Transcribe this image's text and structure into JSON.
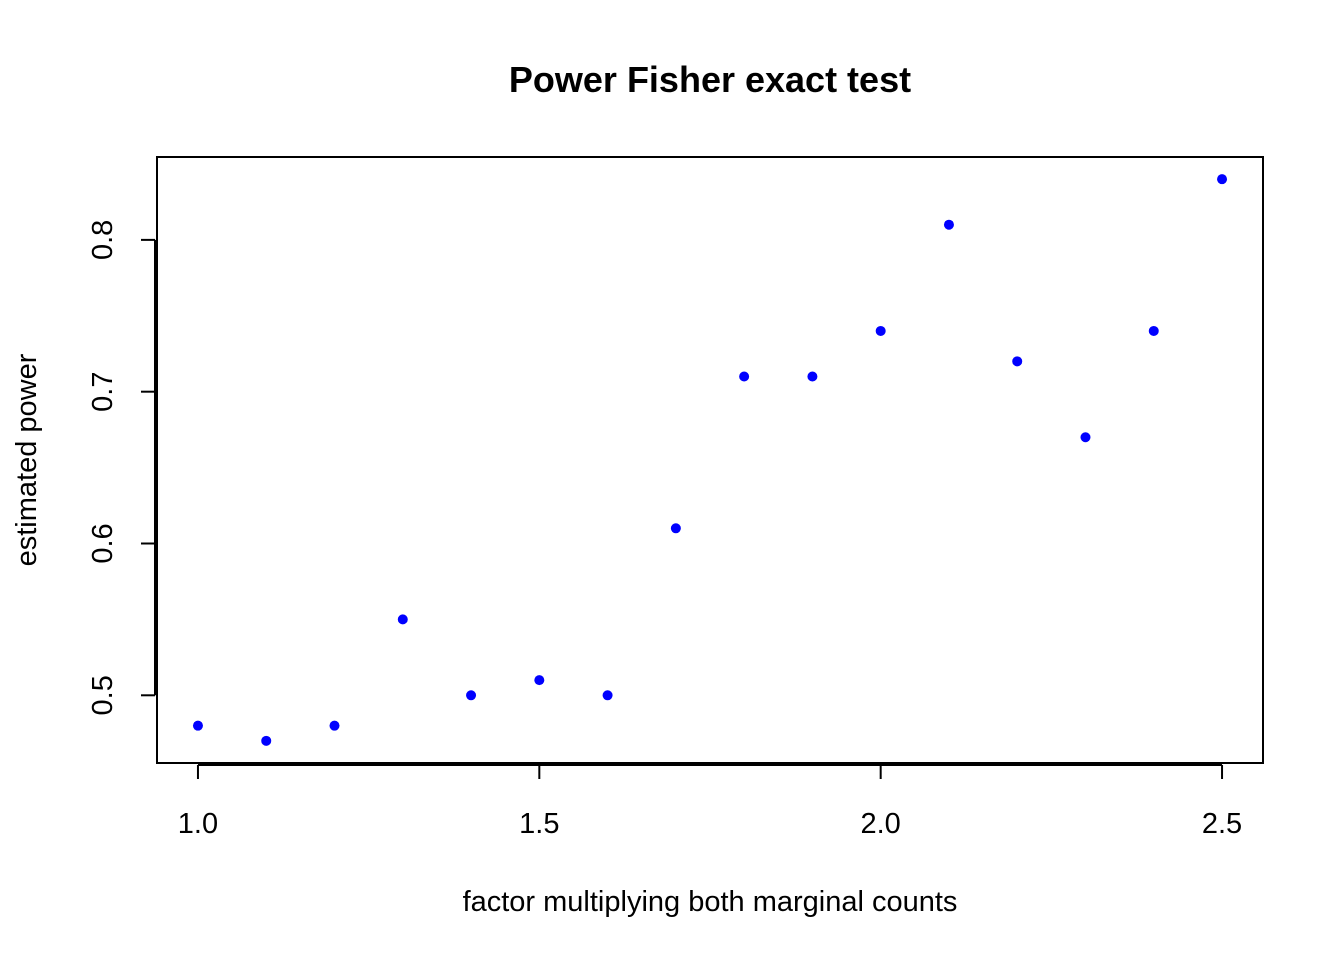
{
  "chart_data": {
    "type": "scatter",
    "title": "Power Fisher exact test",
    "xlabel": "factor multiplying both marginal counts",
    "ylabel": "estimated power",
    "xlim": [
      0.94,
      2.56
    ],
    "ylim": [
      0.4554,
      0.8546
    ],
    "x_ticks": [
      1.0,
      1.5,
      2.0,
      2.5
    ],
    "x_tick_labels": [
      "1.0",
      "1.5",
      "2.0",
      "2.5"
    ],
    "y_ticks": [
      0.5,
      0.6,
      0.7,
      0.8
    ],
    "y_tick_labels": [
      "0.5",
      "0.6",
      "0.7",
      "0.8"
    ],
    "grid": false,
    "legend": "none",
    "point_color": "#0000ff",
    "series": [
      {
        "x": [
          1.0,
          1.1,
          1.2,
          1.3,
          1.4,
          1.5,
          1.6,
          1.7,
          1.8,
          1.9,
          2.0,
          2.1,
          2.2,
          2.3,
          2.4,
          2.5
        ],
        "y": [
          0.48,
          0.47,
          0.48,
          0.55,
          0.5,
          0.51,
          0.5,
          0.61,
          0.71,
          0.71,
          0.74,
          0.81,
          0.72,
          0.67,
          0.74,
          0.84
        ]
      }
    ]
  }
}
